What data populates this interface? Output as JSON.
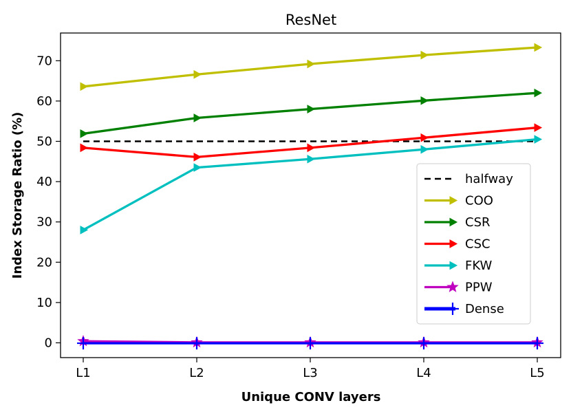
{
  "chart_data": {
    "type": "line",
    "title": "ResNet",
    "xlabel": "Unique CONV layers",
    "ylabel": "Index Storage Ratio (%)",
    "categories": [
      "L1",
      "L2",
      "L3",
      "L4",
      "L5"
    ],
    "ylim": [
      -3.5,
      77
    ],
    "yticks": [
      0,
      10,
      20,
      30,
      40,
      50,
      60,
      70
    ],
    "grid": false,
    "legend_position": "lower-right",
    "series": [
      {
        "name": "halfway",
        "values": [
          50,
          50,
          50,
          50,
          50
        ],
        "color": "#000000",
        "style": "dashed",
        "marker": "none"
      },
      {
        "name": "COO",
        "values": [
          63.6,
          66.6,
          69.2,
          71.4,
          73.3
        ],
        "color": "#bfbf00",
        "style": "solid",
        "marker": "triangle-right"
      },
      {
        "name": "CSR",
        "values": [
          51.9,
          55.8,
          58.0,
          60.1,
          62.0
        ],
        "color": "#008000",
        "style": "solid",
        "marker": "triangle-right"
      },
      {
        "name": "CSC",
        "values": [
          48.4,
          46.1,
          48.4,
          50.9,
          53.4
        ],
        "color": "#ff0000",
        "style": "solid",
        "marker": "triangle-right"
      },
      {
        "name": "FKW",
        "values": [
          28.0,
          43.5,
          45.6,
          48.0,
          50.5
        ],
        "color": "#00bfbf",
        "style": "solid",
        "marker": "triangle-right"
      },
      {
        "name": "PPW",
        "values": [
          0.4,
          0.1,
          0.1,
          0.1,
          0.1
        ],
        "color": "#bf00bf",
        "style": "solid",
        "marker": "star"
      },
      {
        "name": "Dense",
        "values": [
          -0.1,
          -0.1,
          -0.1,
          -0.1,
          -0.1
        ],
        "color": "#0000ff",
        "style": "solid",
        "marker": "plus"
      }
    ]
  }
}
